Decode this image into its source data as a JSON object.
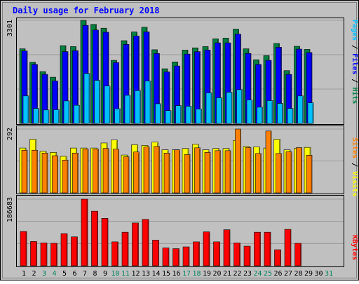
{
  "chart_data": {
    "type": "bar",
    "title": "Daily usage for February 2018",
    "days": [
      "1",
      "2",
      "3",
      "4",
      "5",
      "6",
      "7",
      "8",
      "9",
      "10",
      "11",
      "12",
      "13",
      "14",
      "15",
      "16",
      "17",
      "18",
      "19",
      "20",
      "21",
      "22",
      "23",
      "24",
      "25",
      "26",
      "27",
      "28",
      "29",
      "30",
      "31"
    ],
    "weekend_days": [
      3,
      4,
      10,
      11,
      17,
      18,
      24,
      25,
      31
    ],
    "panels": {
      "hits": {
        "max_label": "3301",
        "ymax": 3301,
        "series": [
          {
            "name": "Hits",
            "color": "#008040",
            "values": [
              2390,
              1960,
              1660,
              1480,
              2490,
              2460,
              3301,
              3170,
              3050,
              2020,
              2650,
              2930,
              3080,
              2360,
              1750,
              1970,
              2350,
              2420,
              2460,
              2710,
              2730,
              3020,
              2390,
              2040,
              2170,
              2560,
              1690,
              2470,
              2370,
              0,
              0
            ]
          },
          {
            "name": "Files",
            "color": "#0000ff",
            "values": [
              2320,
              1890,
              1570,
              1360,
              2300,
              2330,
              3140,
              2990,
              2920,
              1950,
              2530,
              2800,
              2930,
              2240,
              1650,
              1840,
              2220,
              2300,
              2350,
              2580,
              2580,
              2860,
              2240,
              1890,
              2020,
              2440,
              1570,
              2380,
              2270,
              0,
              0
            ]
          },
          {
            "name": "Pages",
            "color": "#00c0ff",
            "values": [
              880,
              480,
              430,
              440,
              720,
              580,
              1600,
              1380,
              1200,
              470,
              900,
              1050,
              1360,
              630,
              410,
              570,
              550,
              460,
              980,
              820,
              1000,
              1080,
              750,
              520,
              730,
              640,
              480,
              880,
              660,
              0,
              0
            ]
          }
        ],
        "legend": [
          "Pages",
          "Files",
          "Hits"
        ]
      },
      "visits": {
        "max_label": "292",
        "ymax": 292,
        "series": [
          {
            "name": "Visits",
            "color": "#ffff00",
            "values": [
              205,
              245,
              190,
              185,
              167,
              205,
              205,
              205,
              228,
              242,
              173,
              220,
              217,
              232,
              197,
              197,
              203,
              222,
              197,
              203,
              203,
              240,
              212,
              210,
              205,
              245,
              197,
              203,
              208,
              0,
              0
            ]
          },
          {
            "name": "Sites",
            "color": "#ff8000",
            "values": [
              195,
              195,
              182,
              170,
              150,
              182,
              200,
              200,
              203,
              200,
              165,
              187,
              210,
              212,
              182,
              197,
              175,
              206,
              185,
              193,
              193,
              292,
              207,
              180,
              283,
              180,
              188,
              207,
              172,
              0,
              0
            ]
          }
        ],
        "legend": [
          "Sites",
          "Visits"
        ]
      },
      "kbytes": {
        "max_label": "186683",
        "ymax": 186683,
        "series": [
          {
            "name": "KBytes",
            "color": "#ff0000",
            "values": [
              96000,
              68000,
              64000,
              63000,
              90000,
              81000,
              186683,
              153000,
              133000,
              67000,
              94000,
              120000,
              130000,
              72000,
              50000,
              48000,
              53000,
              67000,
              95000,
              67000,
              101000,
              64000,
              55000,
              94000,
              94000,
              45000,
              102000,
              63000,
              0,
              0,
              0
            ]
          }
        ],
        "legend": [
          "KBytes"
        ]
      }
    }
  }
}
